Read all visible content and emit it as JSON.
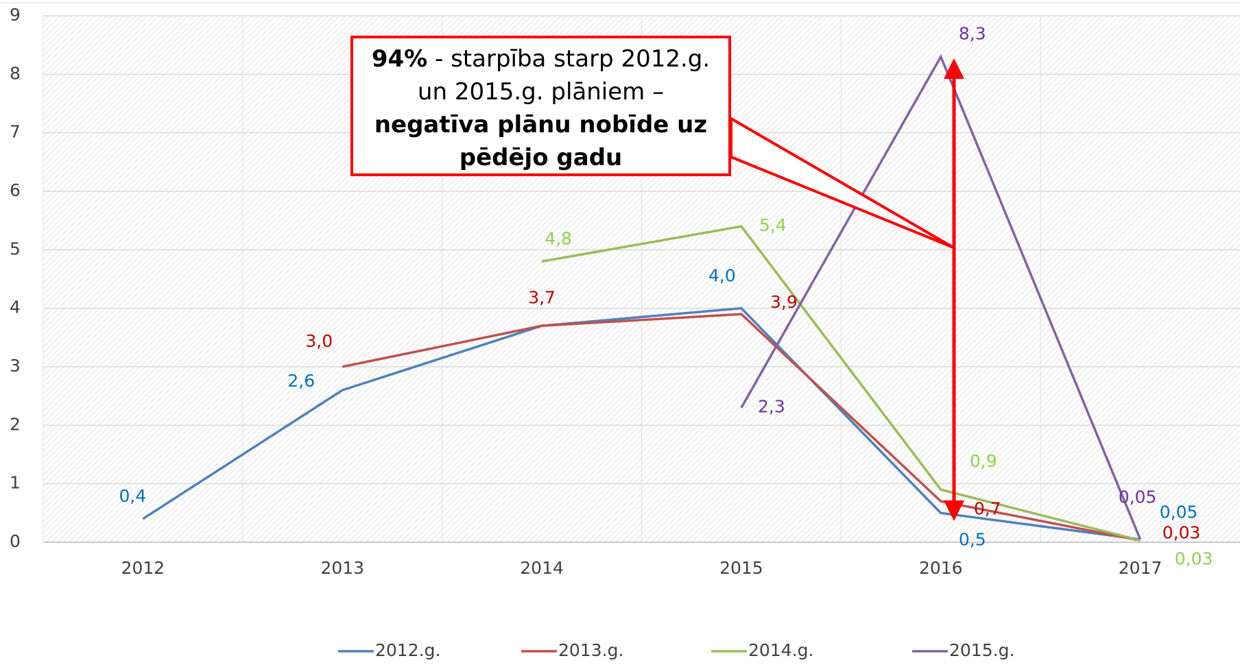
{
  "chart_data": {
    "type": "line",
    "categories": [
      "2012",
      "2013",
      "2014",
      "2015",
      "2016",
      "2017"
    ],
    "series": [
      {
        "name": "2012.g.",
        "color": "#4f81bd",
        "label_color": "#0070c0",
        "values": [
          0.4,
          2.6,
          3.7,
          4.0,
          0.5,
          0.05
        ],
        "value_labels": [
          "0,4",
          "2,6",
          null,
          "4,0",
          "0,5",
          "0,05"
        ]
      },
      {
        "name": "2013.g.",
        "color": "#c0504d",
        "label_color": "#c00000",
        "values": [
          null,
          3.0,
          3.7,
          3.9,
          0.7,
          0.03
        ],
        "value_labels": [
          null,
          "3,0",
          "3,7",
          "3,9",
          "0,7",
          "0,03"
        ]
      },
      {
        "name": "2014.g.",
        "color": "#9bbb59",
        "label_color": "#92d050",
        "values": [
          null,
          null,
          4.8,
          5.4,
          0.9,
          0.03
        ],
        "value_labels": [
          null,
          null,
          "4,8",
          "5,4",
          "0,9",
          "0,03"
        ]
      },
      {
        "name": "2015.g.",
        "color": "#8064a2",
        "label_color": "#7030a0",
        "values": [
          null,
          null,
          null,
          2.3,
          8.3,
          0.05
        ],
        "value_labels": [
          null,
          null,
          null,
          "2,3",
          "8,3",
          "0,05"
        ]
      }
    ],
    "ylim": [
      0,
      9
    ],
    "yticks": [
      0,
      1,
      2,
      3,
      4,
      5,
      6,
      7,
      8,
      9
    ],
    "grid": true,
    "legend": "bottom",
    "annotation": [
      [
        {
          "text": "94%",
          "bold": true
        },
        {
          "text": " - starpība starp 2012.g."
        }
      ],
      [
        {
          "text": "un 2015.g. plāniem –"
        }
      ],
      [
        {
          "text": "negatīva plānu nobīde uz",
          "bold": true
        }
      ],
      [
        {
          "text": "pēdējo gadu",
          "bold": true
        }
      ]
    ]
  }
}
